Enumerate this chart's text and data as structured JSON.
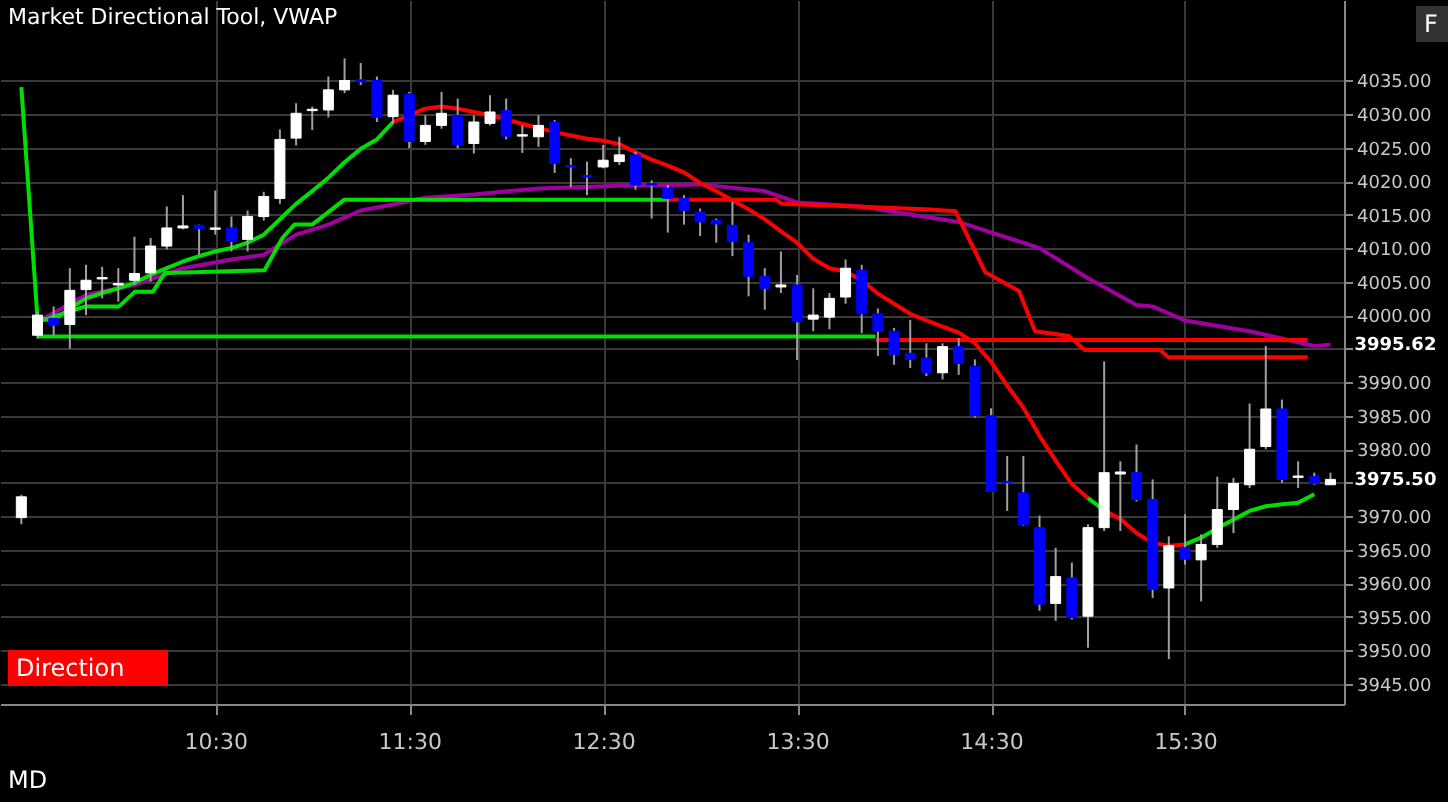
{
  "chart_data": {
    "type": "candlestick",
    "title": "Market Directional Tool, VWAP",
    "x": [
      9.5,
      9.5833,
      9.6667,
      9.75,
      9.8333,
      9.9167,
      10,
      10.0833,
      10.1667,
      10.25,
      10.3333,
      10.4167,
      10.5,
      10.5833,
      10.6667,
      10.75,
      10.8333,
      10.9167,
      11,
      11.0833,
      11.1667,
      11.25,
      11.3333,
      11.4167,
      11.5,
      11.5833,
      11.6667,
      11.75,
      11.8333,
      11.9167,
      12,
      12.0833,
      12.1667,
      12.25,
      12.3333,
      12.4167,
      12.5,
      12.5833,
      12.6667,
      12.75,
      12.8333,
      12.9167,
      13,
      13.0833,
      13.1667,
      13.25,
      13.3333,
      13.4167,
      13.5,
      13.5833,
      13.6667,
      13.75,
      13.8333,
      13.9167,
      14,
      14.0833,
      14.1667,
      14.25,
      14.3333,
      14.4167,
      14.5,
      14.5833,
      14.6667,
      14.75,
      14.8333,
      14.9167,
      15,
      15.0833,
      15.1667,
      15.25,
      15.3333,
      15.4167,
      15.5,
      15.5833,
      15.6667,
      15.75,
      15.8333,
      15.9167,
      16,
      16.0833,
      16.1667,
      16.25
    ],
    "ohlc": [
      [
        3969.8,
        3973.2,
        3968.8,
        3972.9
      ],
      [
        3997,
        4000.5,
        3996.5,
        4000
      ],
      [
        3999.5,
        4001.3,
        3997,
        3998.5
      ],
      [
        3998.6,
        4007,
        3995,
        4003.7
      ],
      [
        4003.8,
        4007.5,
        4000,
        4005.2
      ],
      [
        4005.4,
        4007.2,
        4002.5,
        4005.6
      ],
      [
        4004.5,
        4007,
        4002,
        4004.7
      ],
      [
        4005.2,
        4011.7,
        4004.5,
        4006.2
      ],
      [
        4006.3,
        4011.5,
        4005,
        4010.3
      ],
      [
        4010.3,
        4016.2,
        4009.8,
        4013
      ],
      [
        4013,
        4017.9,
        4012.8,
        4013.3
      ],
      [
        4013.4,
        4013.5,
        4009,
        4012.9
      ],
      [
        4012.8,
        4018.6,
        4012,
        4013
      ],
      [
        4013,
        4014.7,
        4009.5,
        4011
      ],
      [
        4011.3,
        4015.6,
        4009.5,
        4014.7
      ],
      [
        4014.7,
        4018.4,
        4014.1,
        4017.7
      ],
      [
        4017.4,
        4027.7,
        4016.6,
        4026.2
      ],
      [
        4026.4,
        4031.6,
        4025.3,
        4030.1
      ],
      [
        4030.5,
        4031.1,
        4027.6,
        4030.7
      ],
      [
        4030.6,
        4035.6,
        4029.5,
        4033.6
      ],
      [
        4033.6,
        4038.3,
        4033.1,
        4035
      ],
      [
        4035.1,
        4037.6,
        4034.3,
        4034.8
      ],
      [
        4035,
        4035.6,
        4028.8,
        4029.5
      ],
      [
        4029.6,
        4033.6,
        4028.6,
        4032.8
      ],
      [
        4033,
        4033.3,
        4024.9,
        4025.9
      ],
      [
        4025.9,
        4029.8,
        4025.4,
        4028.3
      ],
      [
        4028.3,
        4033.3,
        4027.8,
        4030.1
      ],
      [
        4029.8,
        4032.3,
        4024.9,
        4025.4
      ],
      [
        4025.6,
        4029.8,
        4024.1,
        4028.8
      ],
      [
        4028.6,
        4032.8,
        4028.3,
        4030.3
      ],
      [
        4030.5,
        4032.3,
        4026.2,
        4026.7
      ],
      [
        4026.7,
        4028.3,
        4024.2,
        4026.9
      ],
      [
        4026.6,
        4029.8,
        4025.1,
        4028.3
      ],
      [
        4028.8,
        4029.1,
        4021.2,
        4022.6
      ],
      [
        4022.3,
        4023.4,
        4019.1,
        4022.1
      ],
      [
        4020.8,
        4022.9,
        4017.9,
        4020.6
      ],
      [
        4022.1,
        4025.4,
        4021.9,
        4023.1
      ],
      [
        4022.9,
        4026.6,
        4022.4,
        4023.9
      ],
      [
        4023.9,
        4024.4,
        4018.7,
        4019.4
      ],
      [
        4019.6,
        4020.1,
        4014.4,
        4019.4
      ],
      [
        4018.9,
        4019.4,
        4012.3,
        4017.4
      ],
      [
        4017.4,
        4017.9,
        4013.5,
        4015.6
      ],
      [
        4015.4,
        4015.9,
        4011.8,
        4013.9
      ],
      [
        4014.1,
        4014.4,
        4010.8,
        4013.6
      ],
      [
        4013.4,
        4016.9,
        4008.8,
        4011
      ],
      [
        4010.8,
        4012,
        4002.8,
        4005.8
      ],
      [
        4005.8,
        4007,
        4000.8,
        4004
      ],
      [
        4004.2,
        4009.5,
        4003.3,
        4004.5
      ],
      [
        4004.5,
        4006,
        3993.3,
        3999
      ],
      [
        3999.4,
        4004,
        3997.6,
        4000
      ],
      [
        3999.7,
        4003.3,
        3997.9,
        4002.5
      ],
      [
        4002.7,
        4008.3,
        4001.7,
        4007
      ],
      [
        4006.7,
        4007.5,
        3997.3,
        4000.2
      ],
      [
        4000.2,
        4001,
        3993.9,
        3997.6
      ],
      [
        3997.6,
        3998.1,
        3992.6,
        3994.1
      ],
      [
        3994.3,
        3999.3,
        3992.1,
        3993.4
      ],
      [
        3993.6,
        3995.8,
        3990.9,
        3991.4
      ],
      [
        3991.4,
        3995.8,
        3990.4,
        3995.3
      ],
      [
        3995.3,
        3996.6,
        3991.1,
        3992.8
      ],
      [
        3992.4,
        3993.4,
        3984.7,
        3985
      ],
      [
        3985,
        3986.1,
        3973.7,
        3973.7
      ],
      [
        3975.2,
        3979,
        3970.8,
        3975
      ],
      [
        3973.5,
        3979,
        3968.6,
        3968.8
      ],
      [
        3968.3,
        3970.1,
        3955.9,
        3956.9
      ],
      [
        3957,
        3965.3,
        3954.4,
        3961
      ],
      [
        3960.8,
        3963.1,
        3954.6,
        3954.9
      ],
      [
        3955.1,
        3968.8,
        3950.4,
        3968.3
      ],
      [
        3968.3,
        3993.1,
        3967.8,
        3976.5
      ],
      [
        3976.3,
        3978.2,
        3967.8,
        3976.6
      ],
      [
        3976.5,
        3980.7,
        3972.2,
        3972.5
      ],
      [
        3972.5,
        3975.5,
        3957.8,
        3959.1
      ],
      [
        3959.3,
        3967,
        3948.7,
        3965.6
      ],
      [
        3965.3,
        3970.3,
        3962.8,
        3963.6
      ],
      [
        3963.5,
        3967.3,
        3957.3,
        3965.8
      ],
      [
        3965.8,
        3975.9,
        3965.3,
        3971
      ],
      [
        3971,
        3975.7,
        3967.5,
        3974.9
      ],
      [
        3974.7,
        3986.8,
        3974.2,
        3980
      ],
      [
        3980.4,
        3995.4,
        3980,
        3986
      ],
      [
        3986,
        3987.4,
        3975,
        3975.5
      ],
      [
        3975.8,
        3978.2,
        3974.2,
        3976
      ],
      [
        3975.9,
        3976.5,
        3974.7,
        3974.9
      ],
      [
        3974.7,
        3976.5,
        3974.7,
        3975.5
      ]
    ],
    "colors": [
      "#ffffff",
      "#ffffff",
      "#0000ff",
      "#ffffff",
      "#ffffff",
      "#ffffff",
      "#ffffff",
      "#ffffff",
      "#ffffff",
      "#ffffff",
      "#ffffff",
      "#0000ff",
      "#ffffff",
      "#0000ff",
      "#ffffff",
      "#ffffff",
      "#ffffff",
      "#ffffff",
      "#ffffff",
      "#ffffff",
      "#ffffff",
      "#0000ff",
      "#0000ff",
      "#ffffff",
      "#0000ff",
      "#ffffff",
      "#ffffff",
      "#0000ff",
      "#ffffff",
      "#ffffff",
      "#0000ff",
      "#ffffff",
      "#ffffff",
      "#0000ff",
      "#0000ff",
      "#0000ff",
      "#ffffff",
      "#ffffff",
      "#0000ff",
      "#0000ff",
      "#0000ff",
      "#0000ff",
      "#0000ff",
      "#0000ff",
      "#0000ff",
      "#0000ff",
      "#0000ff",
      "#ffffff",
      "#0000ff",
      "#ffffff",
      "#ffffff",
      "#ffffff",
      "#0000ff",
      "#0000ff",
      "#0000ff",
      "#0000ff",
      "#0000ff",
      "#ffffff",
      "#0000ff",
      "#0000ff",
      "#0000ff",
      "#0000ff",
      "#0000ff",
      "#0000ff",
      "#ffffff",
      "#0000ff",
      "#ffffff",
      "#ffffff",
      "#ffffff",
      "#0000ff",
      "#0000ff",
      "#ffffff",
      "#0000ff",
      "#ffffff",
      "#ffffff",
      "#ffffff",
      "#ffffff",
      "#ffffff",
      "#0000ff",
      "#ffffff",
      "#0000ff",
      "#ffffff"
    ],
    "series": [
      {
        "type": "line",
        "color": "#a000a0",
        "x": [
          9.5833,
          9.8333,
          10.0833,
          10.3333,
          10.5833,
          10.75,
          10.9167,
          11.0833,
          11.25,
          11.4167,
          11.5833,
          11.8333,
          12.1667,
          12.5833,
          13.0,
          13.3333,
          13.5,
          13.8333,
          14.0833,
          14.3333,
          14.75,
          15.0,
          15.25,
          15.3333,
          15.5,
          15.8333,
          16.1667,
          16.25
        ],
        "values": [
          3999,
          4003,
          4004.5,
          4007,
          4008.3,
          4009,
          4012,
          4013.5,
          4015.6,
          4016.5,
          4017.5,
          4018,
          4018.9,
          4019.3,
          4019.5,
          4018.5,
          4016.8,
          4016.2,
          4015,
          4013.9,
          4010,
          4005.5,
          4001.5,
          4001.3,
          3999.2,
          3997.6,
          3995.4,
          3995.6
        ]
      },
      {
        "type": "line",
        "color": "#00e000",
        "x": [
          9.5,
          9.5833,
          9.6667,
          9.75,
          9.8333,
          9.9167,
          10,
          10.0833,
          10.1667,
          10.25,
          10.3333,
          10.4167,
          10.5,
          10.5833,
          10.6667,
          10.75,
          10.8333,
          10.9167,
          11,
          11.0833,
          11.1667,
          11.25,
          11.3333,
          11.4167
        ],
        "values": [
          4034,
          3999.5,
          3999.2,
          4001,
          4002.5,
          4003.3,
          4004,
          4004.8,
          4006,
          4007,
          4008,
          4008.8,
          4009.5,
          4010,
          4010.8,
          4012,
          4014.3,
          4016.6,
          4018.5,
          4020.5,
          4022.8,
          4024.8,
          4026.2,
          4028.8
        ]
      },
      {
        "type": "line",
        "color": "#ff0000",
        "x": [
          11.4167,
          11.5,
          11.5833,
          11.6667,
          11.75,
          11.8333,
          11.9167,
          12,
          12.0833,
          12.1667,
          12.25,
          12.3333,
          12.4167,
          12.5,
          12.5833,
          12.6667,
          12.75,
          12.8333,
          12.9167,
          13,
          13.0833,
          13.1667,
          13.25,
          13.3333,
          13.4167,
          13.5,
          13.5833,
          13.6667,
          13.75,
          13.8333,
          13.9167,
          14,
          14.0833,
          14.1667,
          14.25,
          14.3333,
          14.4167,
          14.5,
          14.5833,
          14.6667,
          14.75,
          14.8333,
          14.9167,
          15
        ],
        "values": [
          4028.8,
          4029.8,
          4030.8,
          4031.1,
          4030.8,
          4030.3,
          4029.8,
          4029.2,
          4028.5,
          4027.9,
          4027.3,
          4026.8,
          4026.3,
          4026,
          4025.5,
          4024.3,
          4023.2,
          4022.3,
          4021.3,
          4019.7,
          4018.5,
          4017.1,
          4015.8,
          4014.3,
          4012.5,
          4010.8,
          4008.4,
          4007,
          4006.5,
          4005.2,
          4003.2,
          4001.7,
          4000.2,
          3999.2,
          3998.3,
          3997.4,
          3995.8,
          3993,
          3989.5,
          3986.2,
          3982,
          3978.3,
          3974.8,
          3972.7
        ]
      },
      {
        "type": "line",
        "color": "#00e000",
        "x": [
          15,
          15.0833
        ],
        "values": [
          3972.7,
          3970.9
        ]
      },
      {
        "type": "line",
        "color": "#ff0000",
        "x": [
          15.0833,
          15.1667,
          15.25,
          15.3333,
          15.4167,
          15.5
        ],
        "values": [
          3970.9,
          3969.6,
          3967.5,
          3966,
          3965.6,
          3965.8
        ]
      },
      {
        "type": "line",
        "color": "#00e000",
        "x": [
          15.5,
          15.5833,
          15.6667,
          15.75,
          15.8333,
          15.9167,
          16,
          16.0833,
          16.1667
        ],
        "values": [
          3965.8,
          3966.8,
          3968.2,
          3969.5,
          3970.8,
          3971.5,
          3971.8,
          3972,
          3973.3
        ]
      },
      {
        "type": "line",
        "color": "#00e000",
        "x": [
          9.583,
          9.83,
          10.004,
          10.086,
          10.179,
          10.24,
          10.754,
          10.846,
          10.908,
          11.0,
          11.164,
          12.828
        ],
        "values": [
          3999,
          4001.3,
          4001.3,
          4003.5,
          4003.5,
          4006.3,
          4006.7,
          4011.5,
          4013.5,
          4013.5,
          4017.2,
          4017.2
        ]
      },
      {
        "type": "line",
        "color": "#ff0000",
        "x": [
          12.828,
          13.392,
          13.423,
          14.162,
          14.316,
          14.47,
          14.644,
          14.727,
          14.901,
          14.983,
          15.373,
          15.414,
          16.133
        ],
        "values": [
          4017.2,
          4017.2,
          4016.6,
          4015.8,
          4015.5,
          4006.4,
          4003.6,
          3997.6,
          3996.9,
          3994.8,
          3994.8,
          3993.7,
          3993.7
        ]
      },
      {
        "type": "line",
        "color": "#00e000",
        "x": [
          9.583,
          13.905
        ],
        "values": [
          3996.8,
          3996.8
        ]
      },
      {
        "type": "line",
        "color": "#ff0000",
        "x": [
          13.905,
          16.133
        ],
        "values": [
          3996.3,
          3996.3
        ]
      }
    ],
    "xlim": [
      9.39,
      16.32
    ],
    "xticks": [
      {
        "value": 10.5,
        "label": "10:30"
      },
      {
        "value": 11.5,
        "label": "11:30"
      },
      {
        "value": 12.5,
        "label": "12:30"
      },
      {
        "value": 13.5,
        "label": "13:30"
      },
      {
        "value": 14.5,
        "label": "14:30"
      },
      {
        "value": 15.5,
        "label": "15:30"
      }
    ],
    "ylim": [
      3942,
      4047
    ],
    "yticks": [
      {
        "value": 3945,
        "label": "3945.00"
      },
      {
        "value": 3950,
        "label": "3950.00"
      },
      {
        "value": 3955,
        "label": "3955.00"
      },
      {
        "value": 3960,
        "label": "3960.00"
      },
      {
        "value": 3965,
        "label": "3965.00"
      },
      {
        "value": 3970,
        "label": "3970.00"
      },
      {
        "value": 3975,
        "label": null
      },
      {
        "value": 3980,
        "label": "3980.00"
      },
      {
        "value": 3985,
        "label": "3985.00"
      },
      {
        "value": 3990,
        "label": "3990.00"
      },
      {
        "value": 3995,
        "label": null
      },
      {
        "value": 4000,
        "label": "4000.00"
      },
      {
        "value": 4005,
        "label": "4005.00"
      },
      {
        "value": 4010,
        "label": "4010.00"
      },
      {
        "value": 4015,
        "label": "4015.00"
      },
      {
        "value": 4020,
        "label": "4020.00"
      },
      {
        "value": 4025,
        "label": "4025.00"
      },
      {
        "value": 4030,
        "label": "4030.00"
      },
      {
        "value": 4035,
        "label": "4035.00"
      }
    ],
    "grid": true,
    "annotations": [
      "Direction",
      "MD",
      "F",
      {
        "text": "3995.62",
        "x": 16.25,
        "y": 3995.62
      },
      {
        "text": "3975.50",
        "x": 16.25,
        "y": 3975.5
      }
    ]
  }
}
